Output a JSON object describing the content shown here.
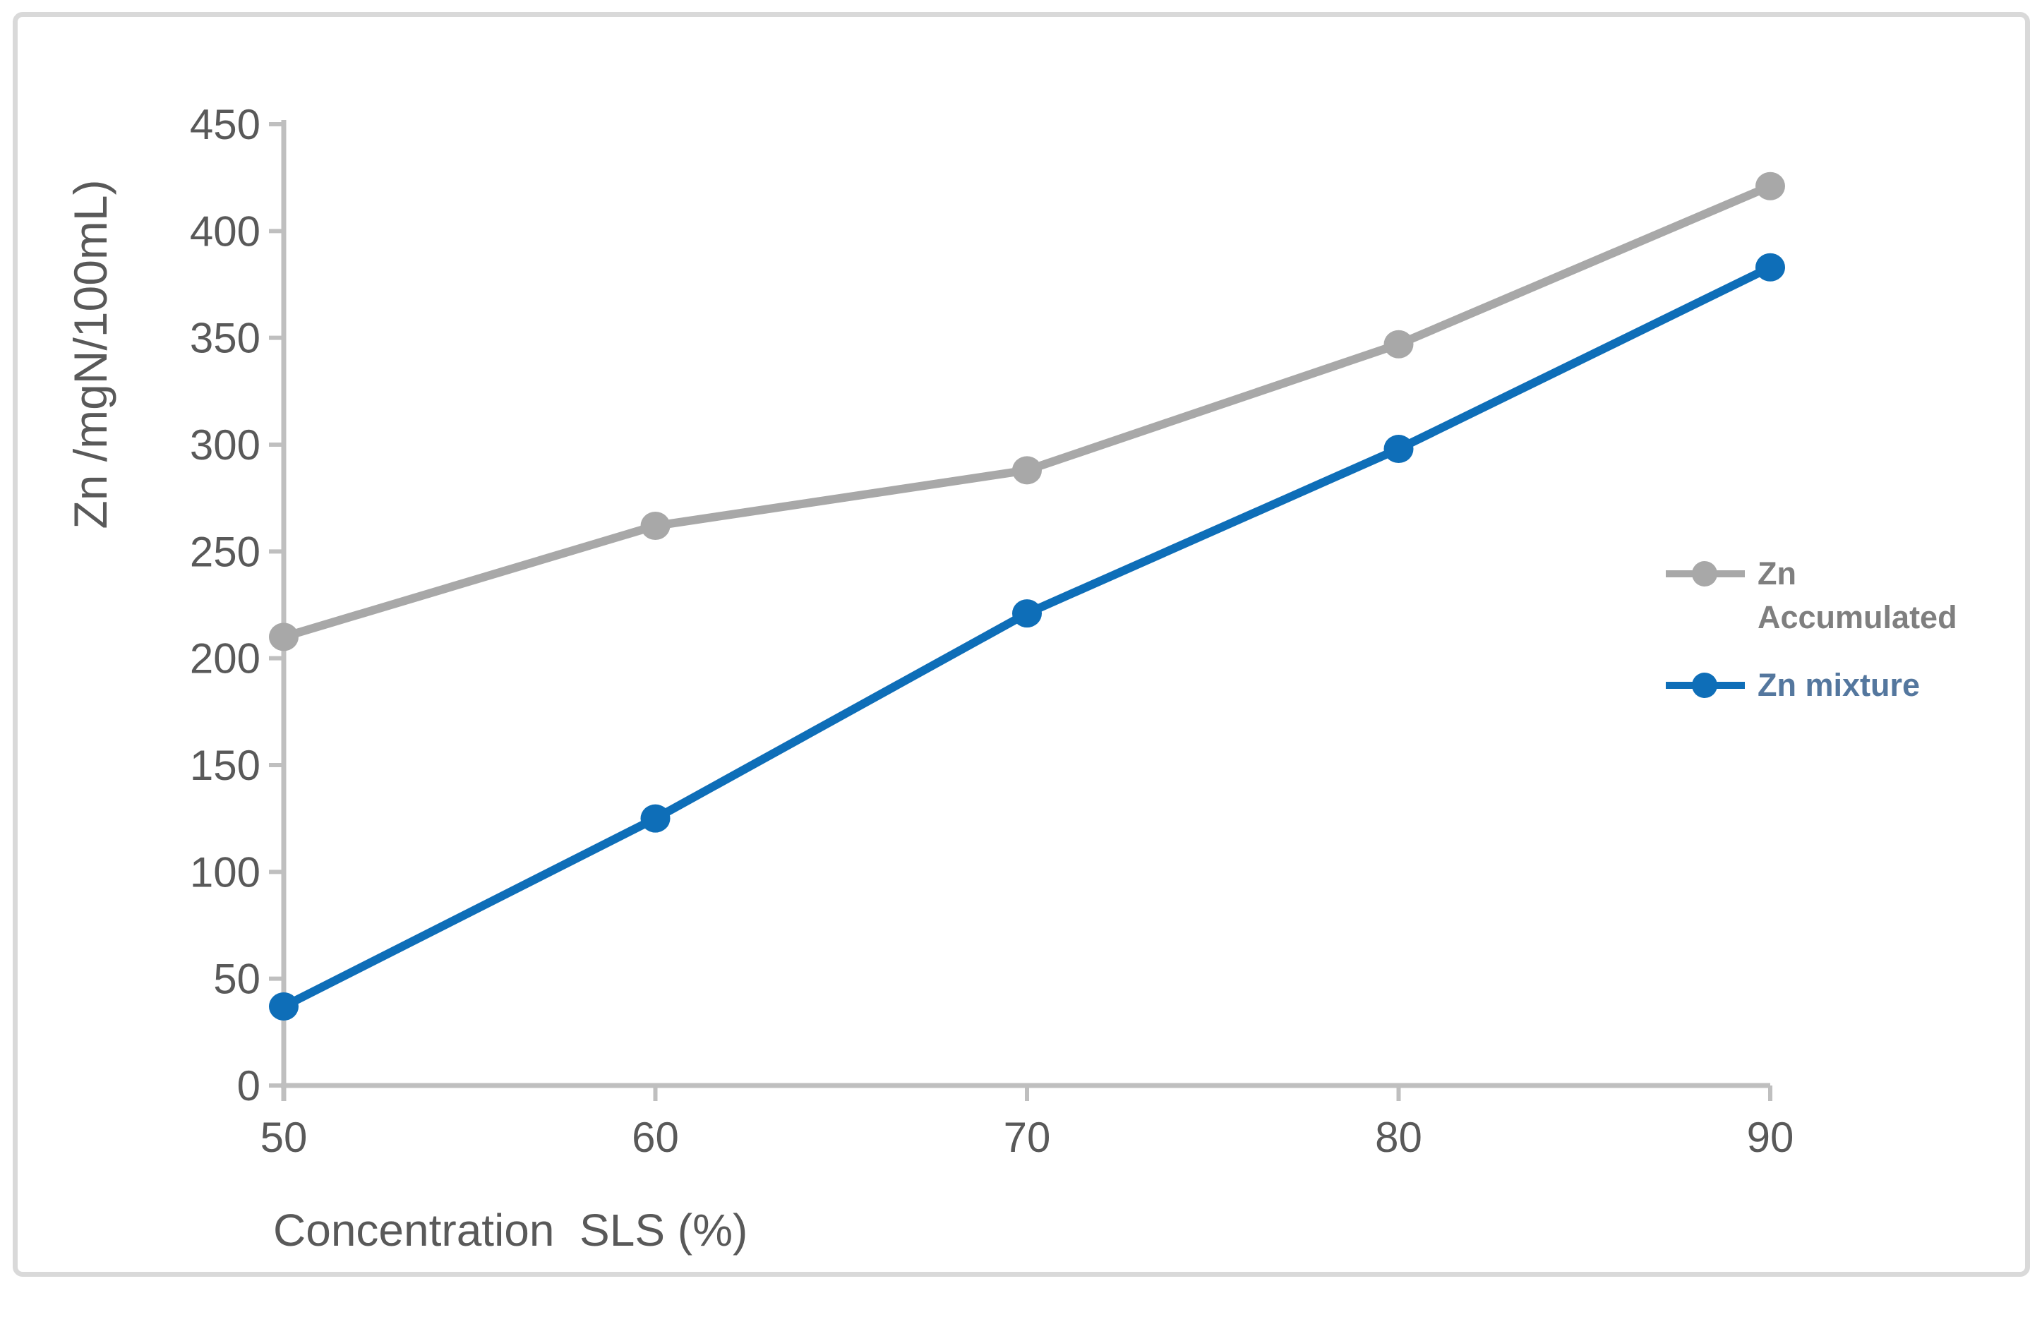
{
  "figure": {
    "background": "#FFFFFF",
    "frame_color": "#D9D9D9"
  },
  "chart_data": {
    "type": "line",
    "title": "",
    "x": [
      50,
      60,
      70,
      80,
      90
    ],
    "xticks": [
      "50",
      "60",
      "70",
      "80",
      "90"
    ],
    "yticks": [
      0,
      50,
      100,
      150,
      200,
      250,
      300,
      350,
      400,
      450
    ],
    "ylim": [
      0,
      450
    ],
    "xlabel": "Concentration  SLS (%)",
    "ylabel": "Zn /mgN/100mL)",
    "grid": false,
    "legend_position": "center-right",
    "axis_line_color": "#BFBFBF",
    "tick_label_color": "#595959",
    "axis_title_color": "#595959",
    "series": [
      {
        "name": "Zn Accumulated",
        "values": [
          210,
          262,
          288,
          347,
          421
        ],
        "color": "#A8A8A8",
        "legend_text_color": "#7F7F7F",
        "marker": "circle"
      },
      {
        "name": "Zn mixture",
        "values": [
          37,
          125,
          221,
          298,
          383
        ],
        "color": "#0E6EB8",
        "legend_text_color": "#54779E",
        "marker": "circle"
      }
    ]
  }
}
